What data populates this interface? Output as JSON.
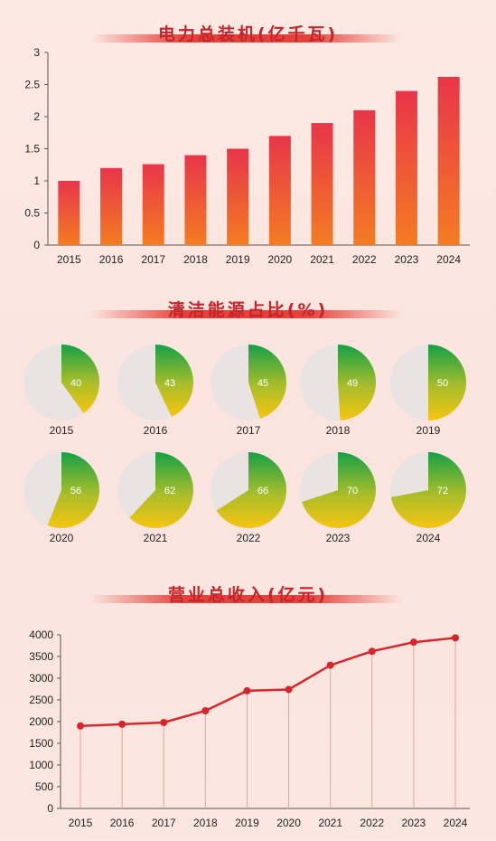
{
  "chart_data": [
    {
      "type": "bar",
      "title": "电力总装机(亿千瓦)",
      "categories": [
        "2015",
        "2016",
        "2017",
        "2018",
        "2019",
        "2020",
        "2021",
        "2022",
        "2023",
        "2024"
      ],
      "values": [
        1.0,
        1.2,
        1.26,
        1.4,
        1.5,
        1.7,
        1.9,
        2.1,
        2.4,
        2.62
      ],
      "ylim": [
        0,
        3
      ],
      "yticks": [
        "0",
        "0.5",
        "1",
        "1.5",
        "2",
        "2.5",
        "3"
      ],
      "xlabel": "",
      "ylabel": "",
      "colors": {
        "bar_top": "#e8354a",
        "bar_bottom": "#f47c22"
      }
    },
    {
      "type": "pie",
      "title": "清洁能源占比(%)",
      "categories": [
        "2015",
        "2016",
        "2017",
        "2018",
        "2019",
        "2020",
        "2021",
        "2022",
        "2023",
        "2024"
      ],
      "values": [
        40,
        43,
        45,
        49,
        50,
        56,
        62,
        66,
        70,
        72
      ],
      "value_labels": [
        "40",
        "43",
        "45",
        "49",
        "50",
        "56",
        "62",
        "66",
        "70",
        "72"
      ],
      "colors": {
        "slice_top": "#15a047",
        "slice_bottom": "#f7c511",
        "rest": "#e9e4e3"
      }
    },
    {
      "type": "line",
      "title": "营业总收入(亿元)",
      "categories": [
        "2015",
        "2016",
        "2017",
        "2018",
        "2019",
        "2020",
        "2021",
        "2022",
        "2023",
        "2024"
      ],
      "values": [
        1900,
        1940,
        1980,
        2250,
        2710,
        2740,
        3300,
        3620,
        3830,
        3930
      ],
      "ylim": [
        0,
        4000
      ],
      "yticks": [
        "0",
        "500",
        "1000",
        "1500",
        "2000",
        "2500",
        "3000",
        "3500",
        "4000"
      ],
      "xlabel": "",
      "ylabel": "",
      "colors": {
        "line": "#d7262b",
        "marker": "#d7262b"
      }
    }
  ]
}
